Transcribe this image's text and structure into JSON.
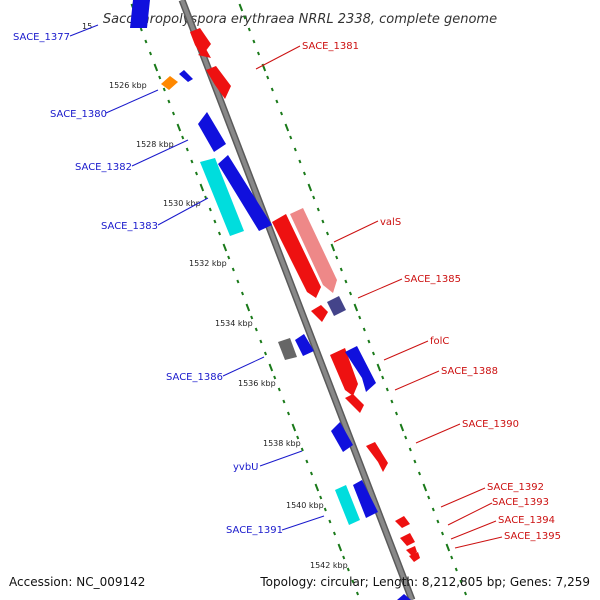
{
  "title": "Saccharopolyspora erythraea NRRL 2338, complete genome",
  "accession_text": "Accession: NC_009142",
  "topology_text": "Topology: circular; Length: 8,212,805 bp; Genes: 7,259",
  "colors": {
    "backbone": "#888888",
    "backbone_edge": "#5a5a5a",
    "tick": "#1a7a1a",
    "minus_label": "#1a1acc",
    "plus_label": "#cc1111",
    "minus_gene": "#1010dd",
    "plus_gene": "#ee1111",
    "cyan_gene": "#00dddd",
    "pink_gene": "#ee8888",
    "orange_gene": "#ff8800",
    "purple_gene": "#44448a",
    "gray_gene": "#666666"
  },
  "tick_labels": [
    "1526 kbp",
    "1528 kbp",
    "1530 kbp",
    "1532 kbp",
    "1534 kbp",
    "1536 kbp",
    "1538 kbp",
    "1540 kbp",
    "1542 kbp"
  ],
  "genes_minus_labels": [
    "SACE_1377",
    "SACE_1380",
    "SACE_1382",
    "SACE_1383",
    "SACE_1386",
    "yvbU",
    "SACE_1391"
  ],
  "genes_plus_labels": [
    "SACE_1381",
    "valS",
    "SACE_1385",
    "folC",
    "SACE_1388",
    "SACE_1390",
    "SACE_1392",
    "SACE_1393",
    "SACE_1394",
    "SACE_1395"
  ]
}
